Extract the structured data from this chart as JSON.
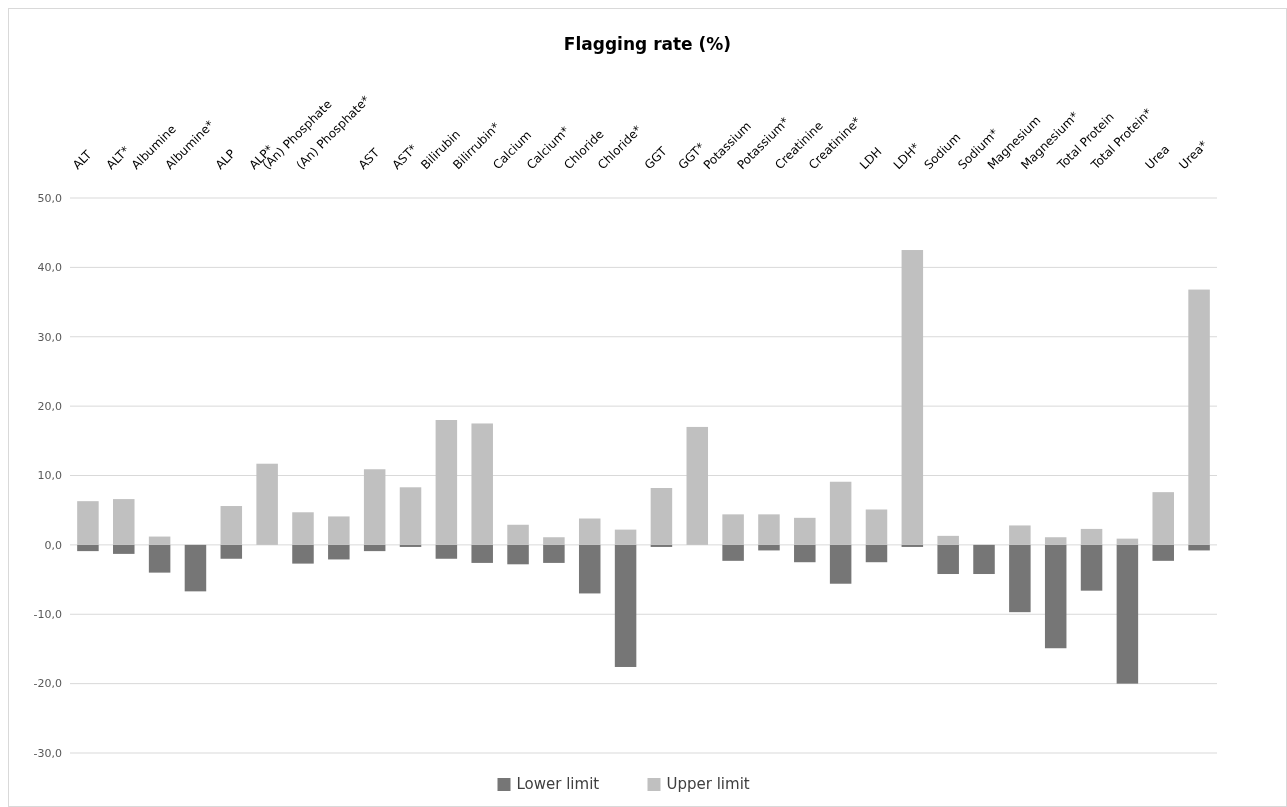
{
  "chart_data": {
    "type": "bar",
    "title": "Flagging rate (%)",
    "stacked": true,
    "categories": [
      "ALT",
      "ALT*",
      "Albumine",
      "Albumine*",
      "ALP",
      "ALP*",
      "(An) Phosphate",
      "(An) Phosphate*",
      "AST",
      "AST*",
      "Bilirubin",
      "Bilirrubin*",
      "Calcium",
      "Calcium*",
      "Chloride",
      "Chloride*",
      "GGT",
      "GGT*",
      "Potassium",
      "Potassium*",
      "Creatinine",
      "Creatinine*",
      "LDH",
      "LDH*",
      "Sodium",
      "Sodium*",
      "Magnesium",
      "Magnesium*",
      "Total Protein",
      "Total Protein*",
      "Urea",
      "Urea*"
    ],
    "series": [
      {
        "name": "Lower limit",
        "color": "#767676",
        "values": [
          -0.9,
          -1.3,
          -4.0,
          -6.7,
          -2.0,
          0,
          -2.7,
          -2.1,
          -0.9,
          -0.3,
          -2.0,
          -2.6,
          -2.8,
          -2.6,
          -7.0,
          -17.6,
          -0.3,
          0,
          -2.3,
          -0.8,
          -2.5,
          -5.6,
          -2.5,
          -0.3,
          -4.2,
          -4.2,
          -9.7,
          -14.9,
          -6.6,
          -20.0,
          -2.3,
          -0.8
        ]
      },
      {
        "name": "Upper limit",
        "color": "#c0c0c0",
        "values": [
          6.3,
          6.6,
          1.2,
          0,
          5.6,
          11.7,
          4.7,
          4.1,
          10.9,
          8.3,
          18.0,
          17.5,
          2.9,
          1.1,
          3.8,
          2.2,
          8.2,
          17.0,
          4.4,
          4.4,
          3.9,
          9.1,
          5.1,
          42.5,
          1.3,
          0,
          2.8,
          1.1,
          2.3,
          0.9,
          7.6,
          36.8
        ]
      }
    ],
    "ylim": [
      -30,
      50
    ],
    "yticks": [
      {
        "value": -30,
        "label": "-30,0"
      },
      {
        "value": -20,
        "label": "-20,0"
      },
      {
        "value": -10,
        "label": "-10,0"
      },
      {
        "value": 0,
        "label": "0,0"
      },
      {
        "value": 10,
        "label": "10,0"
      },
      {
        "value": 20,
        "label": "20,0"
      },
      {
        "value": 30,
        "label": "30,0"
      },
      {
        "value": 40,
        "label": "40,0"
      },
      {
        "value": 50,
        "label": "50,0"
      }
    ],
    "grid": "y",
    "legend": "bottom"
  }
}
